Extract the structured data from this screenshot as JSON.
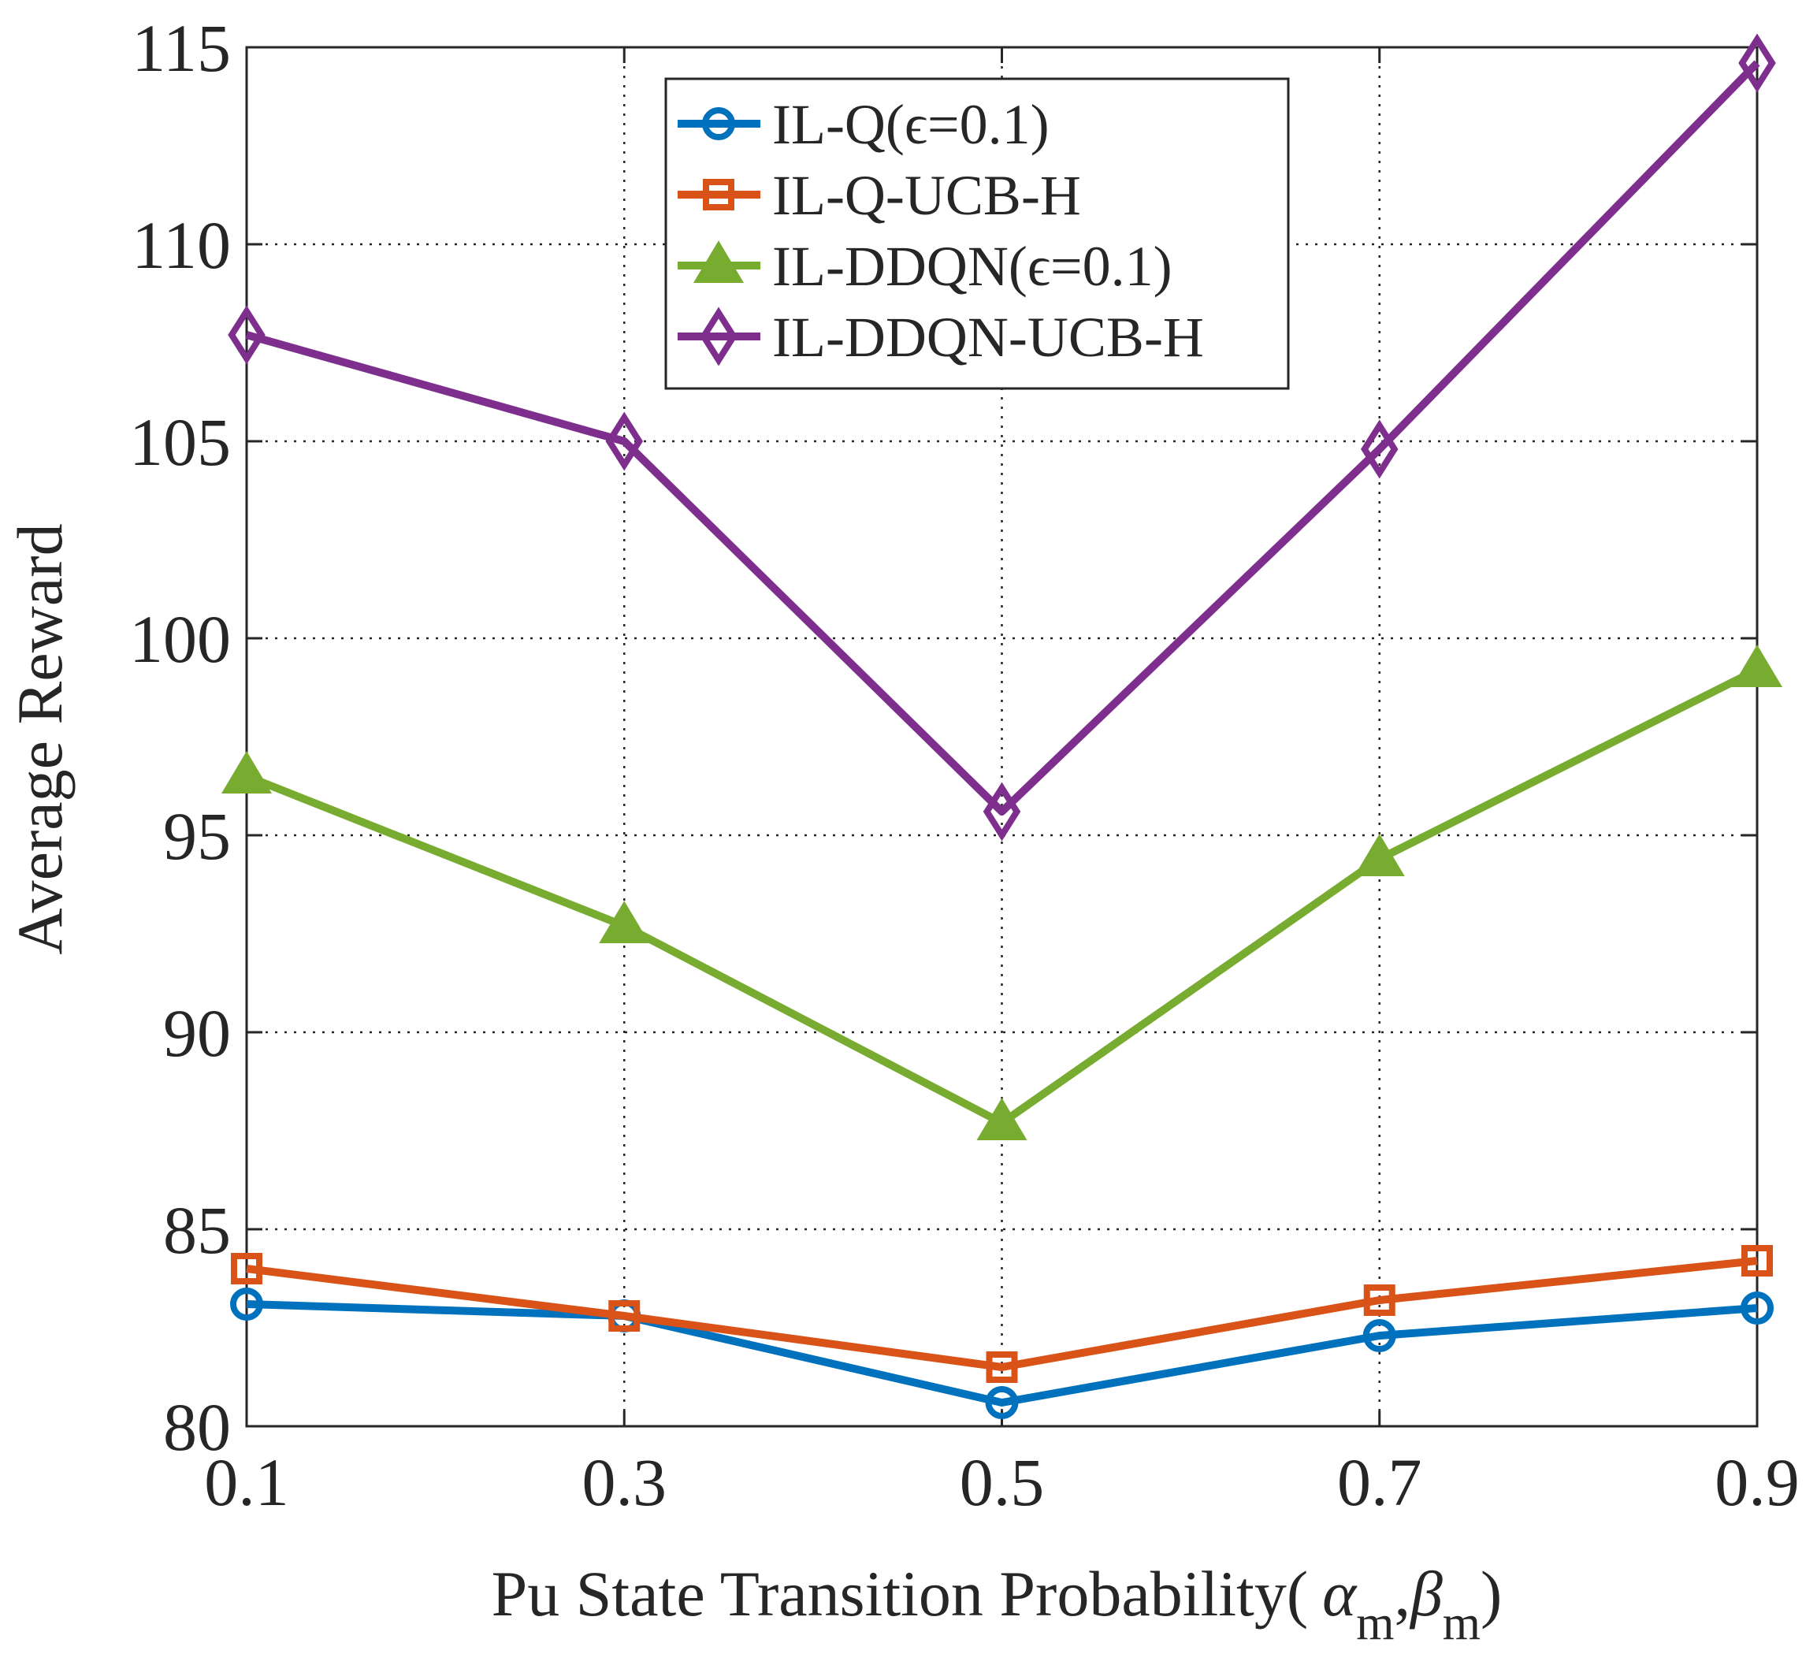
{
  "chart_data": {
    "type": "line",
    "title": "",
    "xlabel": "Pu State Transition Probability(",
    "xlabel_alpha": "α",
    "xlabel_beta": "β",
    "xlabel_sub": "m",
    "xlabel_comma": ",",
    "xlabel_close": ")",
    "ylabel": "Average Reward",
    "x": [
      0.1,
      0.3,
      0.5,
      0.7,
      0.9
    ],
    "x_tick_labels": [
      "0.1",
      "0.3",
      "0.5",
      "0.7",
      "0.9"
    ],
    "xlim": [
      0.1,
      0.9
    ],
    "ylim": [
      80,
      115
    ],
    "y_ticks": [
      80,
      85,
      90,
      95,
      100,
      105,
      110,
      115
    ],
    "y_tick_labels": [
      "80",
      "85",
      "90",
      "95",
      "100",
      "105",
      "110",
      "115"
    ],
    "grid": true,
    "legend_position": "top-center",
    "series": [
      {
        "name": "IL-Q(ϵ=0.1)",
        "color": "#0072BD",
        "marker": "circle",
        "values": [
          83.1,
          82.8,
          80.6,
          82.3,
          83.0
        ]
      },
      {
        "name": "IL-Q-UCB-H",
        "color": "#D95319",
        "marker": "square",
        "values": [
          84.0,
          82.8,
          81.5,
          83.2,
          84.2
        ]
      },
      {
        "name": "IL-DDQN(ϵ=0.1)",
        "color": "#77AC30",
        "marker": "triangle",
        "values": [
          96.5,
          92.7,
          87.7,
          94.4,
          99.2
        ]
      },
      {
        "name": "IL-DDQN-UCB-H",
        "color": "#7E2F8E",
        "marker": "diamond",
        "values": [
          107.7,
          105.0,
          95.6,
          104.8,
          114.6
        ]
      }
    ]
  }
}
